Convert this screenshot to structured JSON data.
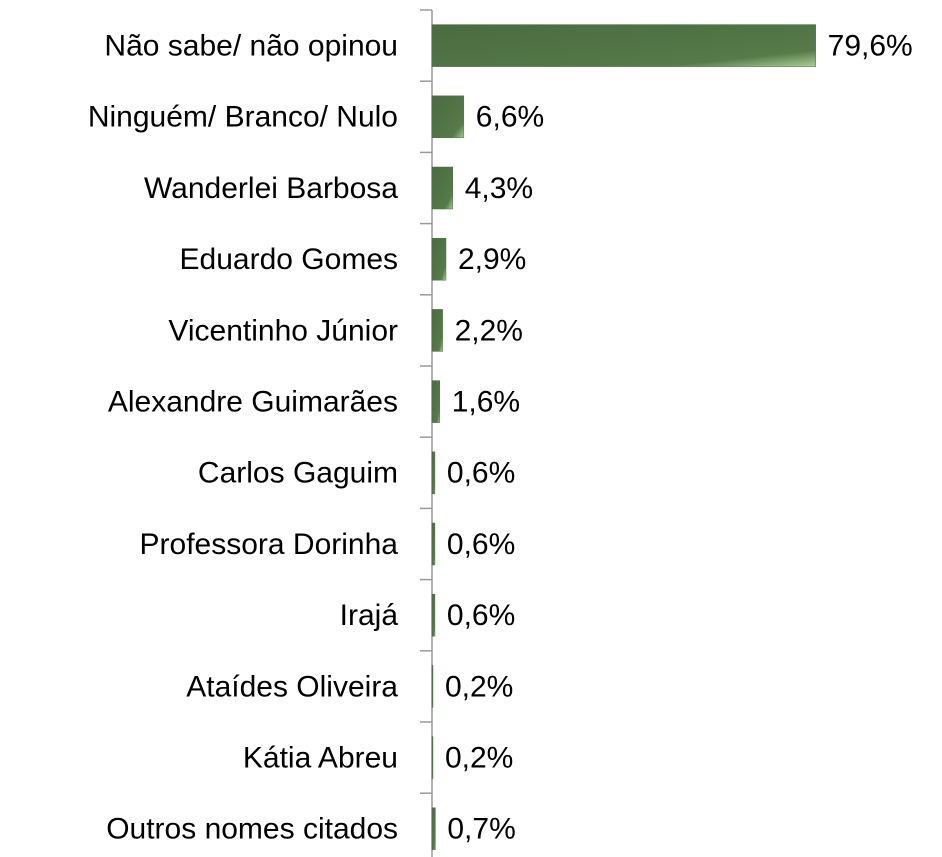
{
  "chart_data": {
    "type": "hbar",
    "categories": [
      "Não sabe/ não opinou",
      "Ninguém/ Branco/ Nulo",
      "Wanderlei Barbosa",
      "Eduardo Gomes",
      "Vicentinho Júnior",
      "Alexandre Guimarães",
      "Carlos Gaguim",
      "Professora Dorinha",
      "Irajá",
      "Ataídes Oliveira",
      "Kátia Abreu",
      "Outros nomes citados"
    ],
    "values": [
      79.6,
      6.6,
      4.3,
      2.9,
      2.2,
      1.6,
      0.6,
      0.6,
      0.6,
      0.2,
      0.2,
      0.7
    ],
    "value_labels": [
      "79,6%",
      "6,6%",
      "4,3%",
      "2,9%",
      "2,2%",
      "1,6%",
      "0,6%",
      "0,6%",
      "0,6%",
      "0,2%",
      "0,2%",
      "0,7%"
    ],
    "color": "#4e7045",
    "xlim": [
      0,
      100
    ]
  }
}
